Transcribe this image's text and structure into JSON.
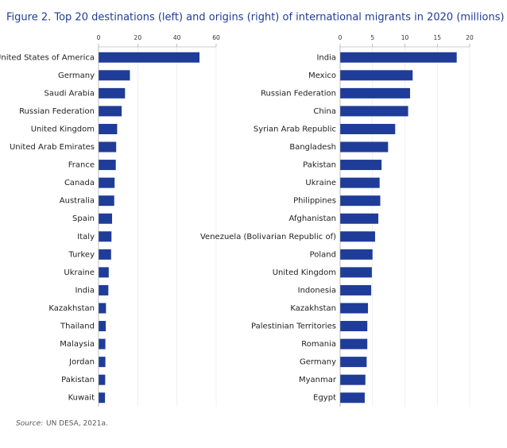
{
  "title": "Figure 2. Top 20 destinations (left) and origins (right) of international migrants in 2020 (millions)",
  "source_label": "Source:",
  "source": "UN DESA, 2021a.",
  "chart_data": [
    {
      "type": "bar",
      "orientation": "horizontal",
      "color": "#1f3c99",
      "grid": true,
      "categories": [
        "United States of America",
        "Germany",
        "Saudi Arabia",
        "Russian Federation",
        "United Kingdom",
        "United Arab Emirates",
        "France",
        "Canada",
        "Australia",
        "Spain",
        "Italy",
        "Turkey",
        "Ukraine",
        "India",
        "Kazakhstan",
        "Thailand",
        "Malaysia",
        "Jordan",
        "Pakistan",
        "Kuwait"
      ],
      "values": [
        51.5,
        16,
        13.5,
        11.8,
        9.5,
        9,
        8.8,
        8.2,
        8,
        6.9,
        6.6,
        6.4,
        5.2,
        5,
        3.8,
        3.7,
        3.5,
        3.5,
        3.4,
        3.3
      ],
      "xlim": [
        0,
        60
      ],
      "xticks": [
        0,
        20,
        40,
        60
      ]
    },
    {
      "type": "bar",
      "orientation": "horizontal",
      "color": "#1f3c99",
      "grid": true,
      "categories": [
        "India",
        "Mexico",
        "Russian Federation",
        "China",
        "Syrian Arab Republic",
        "Bangladesh",
        "Pakistan",
        "Ukraine",
        "Philippines",
        "Afghanistan",
        "Venezuela (Bolivarian Republic of)",
        "Poland",
        "United Kingdom",
        "Indonesia",
        "Kazakhstan",
        "Palestinian Territories",
        "Romania",
        "Germany",
        "Myanmar",
        "Egypt"
      ],
      "values": [
        18,
        11.2,
        10.8,
        10.5,
        8.5,
        7.4,
        6.4,
        6.1,
        6.2,
        5.9,
        5.4,
        5,
        4.9,
        4.8,
        4.3,
        4.2,
        4.2,
        4.1,
        3.9,
        3.8
      ],
      "xlim": [
        0,
        20
      ],
      "xticks": [
        0,
        5,
        10,
        15,
        20
      ]
    }
  ]
}
